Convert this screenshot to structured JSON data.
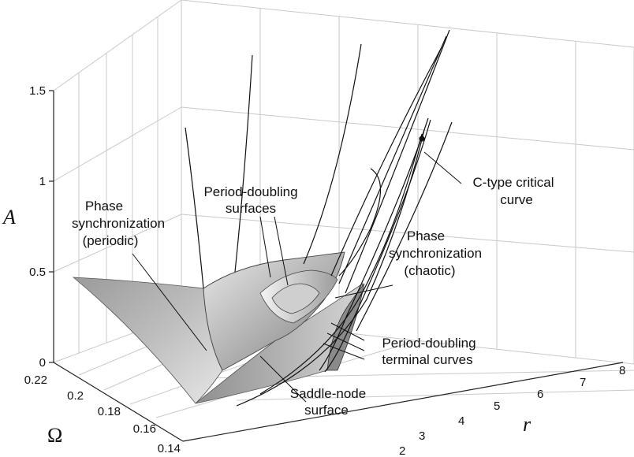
{
  "axes": {
    "a_label": "A",
    "omega_label": "Ω",
    "r_label": "r",
    "a_ticks": [
      "0",
      "0.5",
      "1",
      "1.5"
    ],
    "omega_ticks": [
      "0.22",
      "0.2",
      "0.18",
      "0.16",
      "0.14"
    ],
    "r_ticks": [
      "2",
      "3",
      "4",
      "5",
      "6",
      "7",
      "8"
    ]
  },
  "annotations": {
    "phase_sync_periodic": [
      "Phase",
      "synchronization",
      "(periodic)"
    ],
    "period_doubling_surfaces": [
      "Period-doubling",
      "surfaces"
    ],
    "phase_sync_chaotic": [
      "Phase",
      "synchronization",
      "(chaotic)"
    ],
    "c_type_curve": [
      "C-type critical",
      "curve"
    ],
    "pd_terminal": [
      "Period-doubling",
      "terminal curves"
    ],
    "saddle_node": [
      "Saddle-node",
      "surface"
    ]
  }
}
